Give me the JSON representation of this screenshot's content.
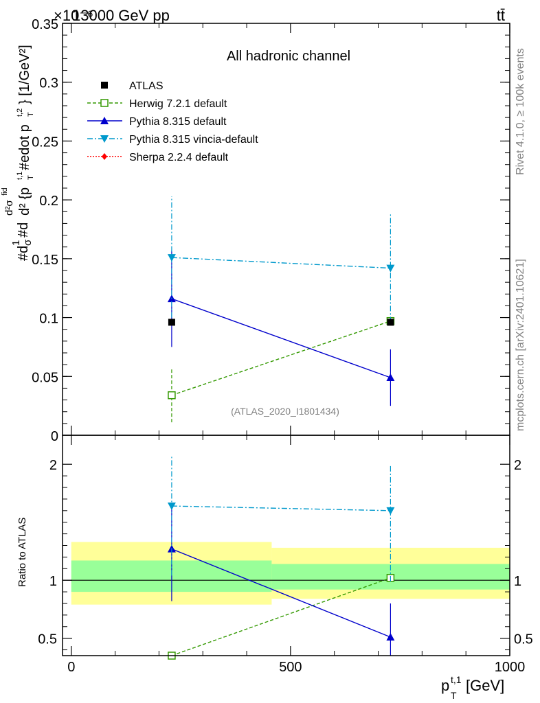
{
  "header": {
    "left": "13000 GeV pp",
    "right": "tt̄",
    "exponent": "×10⁻⁶"
  },
  "side": {
    "rivet": "Rivet 4.1.0, ≥ 100k events",
    "mcplots": "mcplots.cern.ch [arXiv:2401.10621]"
  },
  "chart_data": {
    "type": "scatter",
    "title": "All hadronic channel",
    "analysis_tag": "(ATLAS_2020_I1801434)",
    "xlabel": "p_T^{t,1} [GeV]",
    "ylabel": "#d\\frac{1}{\\sigma}#d\\frac{d^2\\sigma^{fid}}{d^2 {p_T^{t,1} #edot p_T^{t,2}} [1/GeV^2]",
    "ylabel_lines": [
      "#d",
      "1",
      "σ",
      "#d",
      "d²σ",
      "fid",
      "d² {p",
      "t,1",
      "T",
      " #edot p",
      "t,2",
      "T",
      "} [1/GeV²]"
    ],
    "ratio_ylabel": "Ratio to ATLAS",
    "xlim": [
      -20,
      1000
    ],
    "ylim": [
      0,
      0.35
    ],
    "ratio_ylim": [
      0.35,
      2.25
    ],
    "x_ticks": [
      "0",
      "500",
      "1000"
    ],
    "y_ticks": [
      "0",
      "0.05",
      "0.1",
      "0.15",
      "0.2",
      "0.25",
      "0.3",
      "0.35"
    ],
    "ratio_ticks": [
      "0.5",
      "1",
      "2"
    ],
    "bins": [
      [
        0,
        457
      ],
      [
        457,
        1000
      ]
    ],
    "data": {
      "name": "ATLAS",
      "x": [
        229,
        728
      ],
      "y": [
        0.096,
        0.096
      ],
      "band_inner": [
        [
          0.9,
          1.17
        ],
        [
          0.92,
          1.14
        ]
      ],
      "band_outer": [
        [
          0.79,
          1.33
        ],
        [
          0.84,
          1.28
        ]
      ]
    },
    "series": [
      {
        "name": "Herwig 7.2.1 default",
        "color": "#339900",
        "marker": "open-square",
        "linestyle": "dashed",
        "x": [
          229,
          728
        ],
        "y": [
          0.034,
          0.097
        ],
        "yerr": [
          [
            0.011,
            0.057
          ],
          [
            0.097,
            0.097
          ]
        ],
        "ratio": [
          0.35,
          1.02
        ],
        "ratio_err": [
          [
            0.35,
            0.35
          ],
          [
            1.0,
            1.02
          ]
        ]
      },
      {
        "name": "Pythia 8.315 default",
        "color": "#0000cc",
        "marker": "filled-triangle-up",
        "linestyle": "solid",
        "x": [
          229,
          728
        ],
        "y": [
          0.116,
          0.049
        ],
        "yerr": [
          [
            0.075,
            0.157
          ],
          [
            0.025,
            0.073
          ]
        ],
        "ratio": [
          1.27,
          0.51
        ],
        "ratio_err": [
          [
            0.82,
            1.67
          ],
          [
            0.33,
            0.8
          ]
        ]
      },
      {
        "name": "Pythia 8.315 vincia-default",
        "color": "#0099cc",
        "marker": "filled-triangle-down",
        "linestyle": "dashdot",
        "x": [
          229,
          728
        ],
        "y": [
          0.151,
          0.142
        ],
        "yerr": [
          [
            0.1,
            0.203
          ],
          [
            0.096,
            0.188
          ]
        ],
        "ratio": [
          1.64,
          1.6
        ],
        "ratio_err": [
          [
            1.04,
            2.07
          ],
          [
            0.99,
            1.99
          ]
        ]
      },
      {
        "name": "Sherpa 2.2.4 default",
        "color": "#ff0000",
        "marker": "filled-diamond",
        "linestyle": "dotted",
        "x": [],
        "y": [],
        "ratio": []
      }
    ],
    "legend_position": "top-left"
  }
}
